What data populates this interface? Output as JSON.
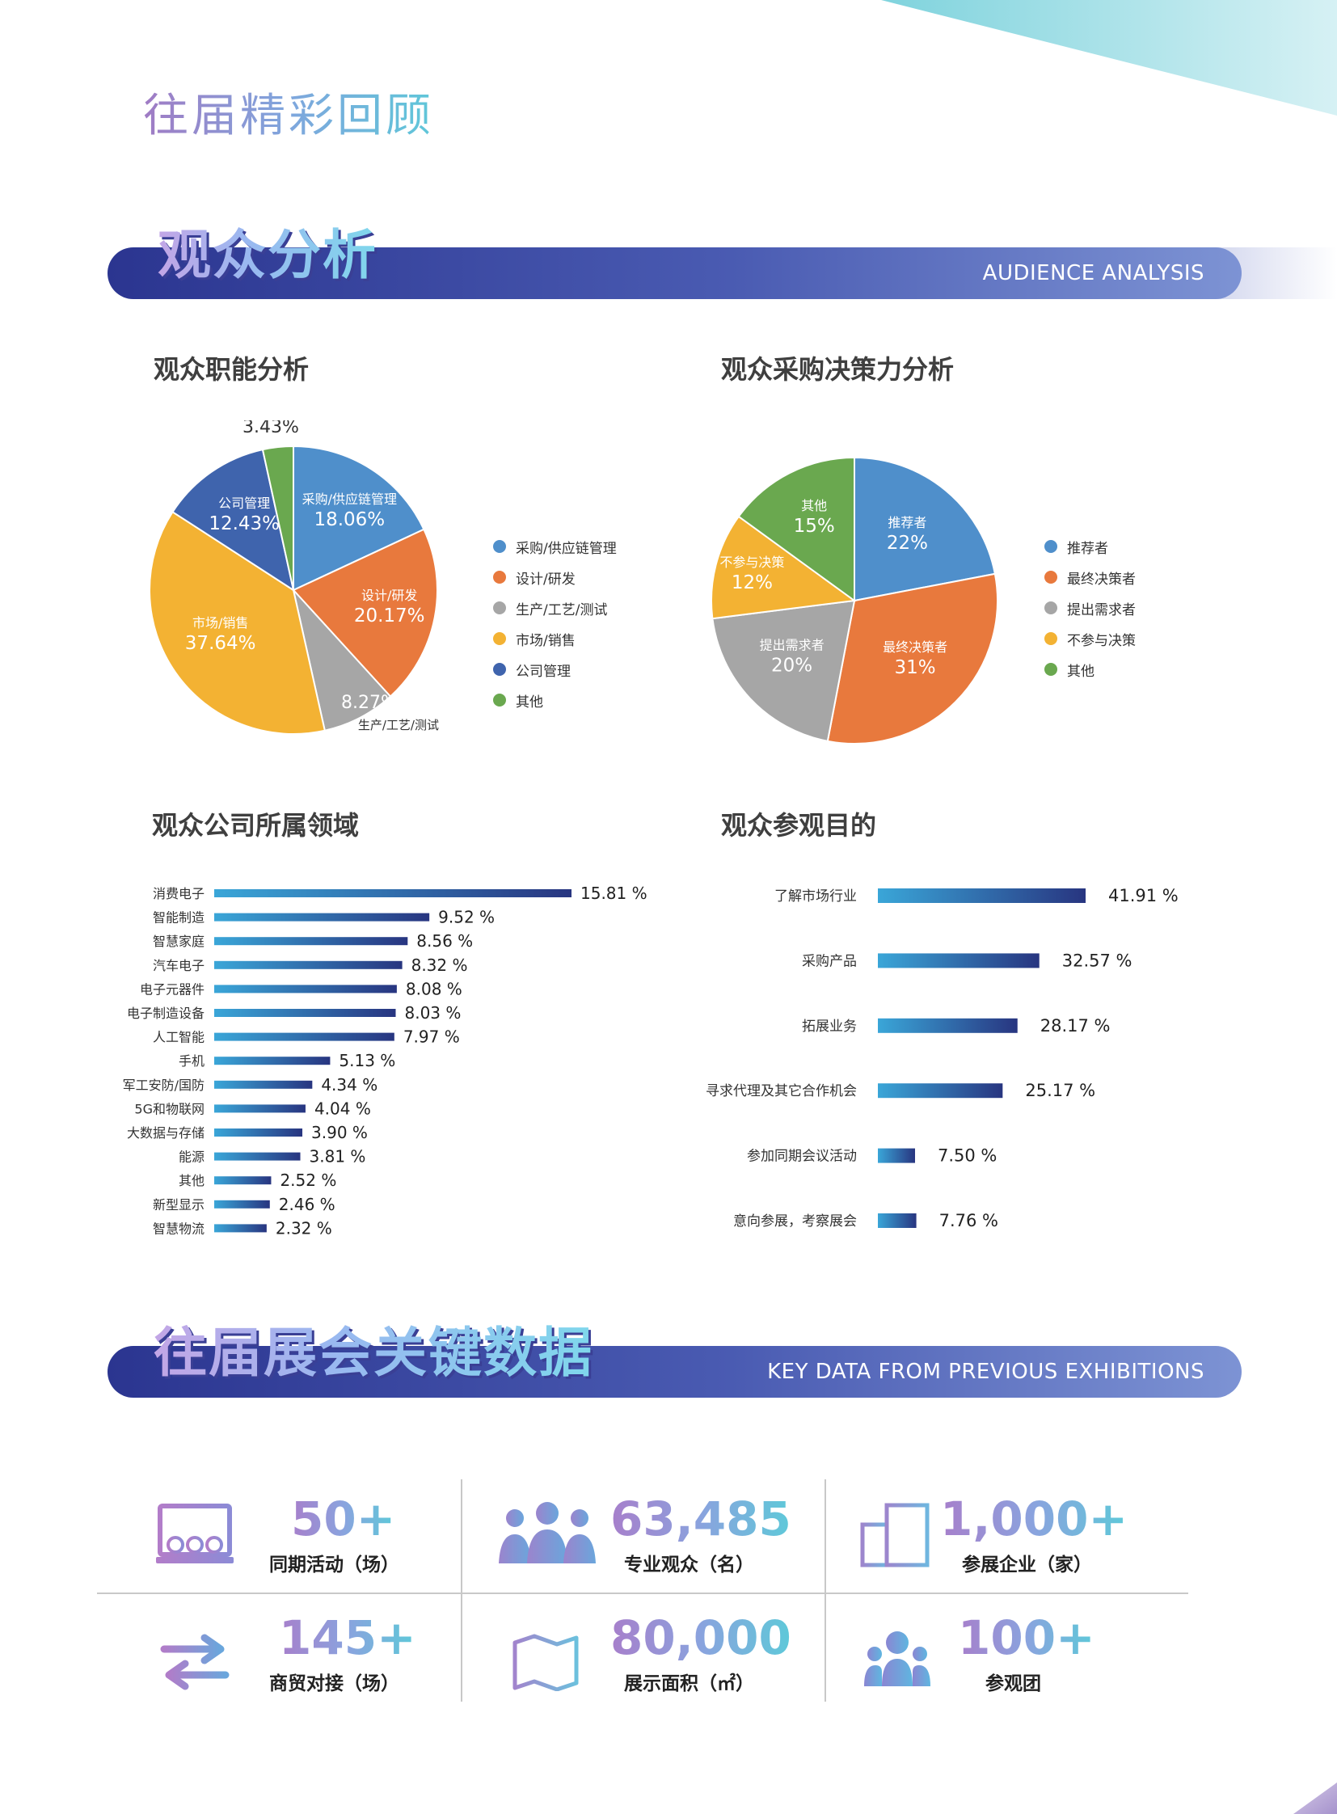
{
  "page_title": "往届精彩回顾",
  "section1": {
    "title_cn": "观众分析",
    "title_en": "AUDIENCE ANALYSIS"
  },
  "section2": {
    "title_cn": "往届展会关键数据",
    "title_en": "KEY DATA FROM PREVIOUS EXHIBITIONS"
  },
  "colors": {
    "blue": "#4f8fcb",
    "orange": "#e8793d",
    "gray": "#a6a6a6",
    "yellow": "#f3b233",
    "navy": "#3f64ad",
    "green": "#6aa84f",
    "bar_start": "#3aa6d8",
    "bar_end": "#283580"
  },
  "chart_data": [
    {
      "type": "pie",
      "title": "观众职能分析",
      "slices": [
        {
          "label": "采购/供应链管理",
          "value": 18.06,
          "display": "18.06%",
          "color": "#4f8fcb"
        },
        {
          "label": "设计/研发",
          "value": 20.17,
          "display": "20.17%",
          "color": "#e8793d"
        },
        {
          "label": "生产/工艺/测试",
          "value": 8.27,
          "display": "8.27%",
          "color": "#a6a6a6"
        },
        {
          "label": "市场/销售",
          "value": 37.64,
          "display": "37.64%",
          "color": "#f3b233"
        },
        {
          "label": "公司管理",
          "value": 12.43,
          "display": "12.43%",
          "color": "#3f64ad"
        },
        {
          "label": "其他",
          "value": 3.43,
          "display": "3.43%",
          "color": "#6aa84f"
        }
      ],
      "legend": [
        "采购/供应链管理",
        "设计/研发",
        "生产/工艺/测试",
        "市场/销售",
        "公司管理",
        "其他"
      ],
      "legend_position": "right"
    },
    {
      "type": "pie",
      "title": "观众采购决策力分析",
      "slices": [
        {
          "label": "推荐者",
          "value": 22,
          "display": "22%",
          "color": "#4f8fcb"
        },
        {
          "label": "最终决策者",
          "value": 31,
          "display": "31%",
          "color": "#e8793d"
        },
        {
          "label": "提出需求者",
          "value": 20,
          "display": "20%",
          "color": "#a6a6a6"
        },
        {
          "label": "不参与决策",
          "value": 12,
          "display": "12%",
          "color": "#f3b233"
        },
        {
          "label": "其他",
          "value": 15,
          "display": "15%",
          "color": "#6aa84f"
        }
      ],
      "legend": [
        "推荐者",
        "最终决策者",
        "提出需求者",
        "不参与决策",
        "其他"
      ],
      "legend_position": "right"
    },
    {
      "type": "bar",
      "orientation": "horizontal",
      "title": "观众公司所属领域",
      "categories": [
        "消费电子",
        "智能制造",
        "智慧家庭",
        "汽车电子",
        "电子元器件",
        "电子制造设备",
        "人工智能",
        "手机",
        "军工安防/国防",
        "5G和物联网",
        "大数据与存储",
        "能源",
        "其他",
        "新型显示",
        "智慧物流"
      ],
      "values": [
        15.81,
        9.52,
        8.56,
        8.32,
        8.08,
        8.03,
        7.97,
        5.13,
        4.34,
        4.04,
        3.9,
        3.81,
        2.52,
        2.46,
        2.32
      ],
      "labels": [
        "15.81 %",
        "9.52 %",
        "8.56 %",
        "8.32 %",
        "8.08 %",
        "8.03 %",
        "7.97 %",
        "5.13 %",
        "4.34 %",
        "4.04 %",
        "3.90 %",
        "3.81 %",
        "2.52 %",
        "2.46 %",
        "2.32 %"
      ]
    },
    {
      "type": "bar",
      "orientation": "horizontal",
      "title": "观众参观目的",
      "categories": [
        "了解市场行业",
        "采购产品",
        "拓展业务",
        "寻求代理及其它合作机会",
        "参加同期会议活动",
        "意向参展，考察展会"
      ],
      "values": [
        41.91,
        32.57,
        28.17,
        25.17,
        7.5,
        7.76
      ],
      "labels": [
        "41.91 %",
        "32.57 %",
        "28.17 %",
        "25.17 %",
        "7.50 %",
        "7.76 %"
      ]
    }
  ],
  "stats": [
    {
      "number": "50+",
      "label": "同期活动（场）",
      "icon": "presentation-icon"
    },
    {
      "number": "63,485",
      "label": "专业观众（名）",
      "icon": "audience-icon"
    },
    {
      "number": "1,000+",
      "label": "参展企业（家）",
      "icon": "building-icon"
    },
    {
      "number": "145+",
      "label": "商贸对接（场）",
      "icon": "exchange-icon"
    },
    {
      "number": "80,000",
      "label": "展示面积（㎡）",
      "icon": "map-icon"
    },
    {
      "number": "100+",
      "label": "参观团",
      "icon": "group-icon"
    }
  ]
}
